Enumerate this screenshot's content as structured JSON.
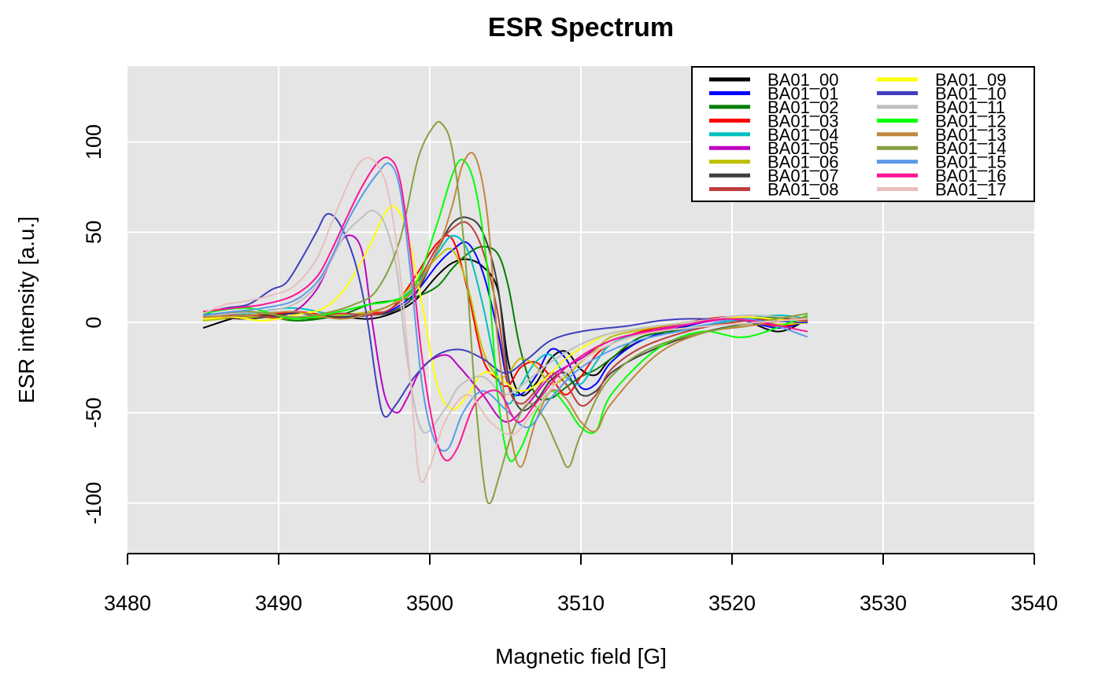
{
  "chart_data": {
    "type": "line",
    "title": "ESR Spectrum",
    "xlabel": "Magnetic field [G]",
    "ylabel": "ESR intensity [a.u.]",
    "xlim": [
      3480,
      3540
    ],
    "ylim": [
      -128,
      142
    ],
    "xticks": [
      3480,
      3490,
      3500,
      3510,
      3520,
      3530,
      3540
    ],
    "yticks": [
      -100,
      -50,
      0,
      50,
      100
    ],
    "grid": true,
    "legend_position": "top-right",
    "legend_columns": 2,
    "background_color": "#e5e5e5",
    "series": [
      {
        "name": "BA01_00",
        "color": "#000000",
        "x": [
          3485,
          3488,
          3491,
          3494,
          3496,
          3497.5,
          3499,
          3500.5,
          3501.5,
          3502.5,
          3503.5,
          3504.5,
          3505.2,
          3506,
          3507,
          3508,
          3509,
          3510,
          3511,
          3512,
          3514,
          3517,
          3520,
          3523,
          3525
        ],
        "y": [
          -3,
          4,
          2,
          3,
          2,
          5,
          12,
          26,
          33,
          35,
          31,
          18,
          -22,
          -40,
          -34,
          -20,
          -16,
          -26,
          -29,
          -20,
          -10,
          -2,
          3,
          -5,
          2
        ]
      },
      {
        "name": "BA01_01",
        "color": "#0000ff",
        "x": [
          3485,
          3488,
          3491,
          3494,
          3496,
          3497.5,
          3499,
          3500.5,
          3501.5,
          3502.5,
          3503.5,
          3504.5,
          3505.2,
          3506,
          3507,
          3508,
          3509,
          3510,
          3511,
          3512,
          3514,
          3517,
          3520,
          3523,
          3525
        ],
        "y": [
          5,
          3,
          5,
          3,
          4,
          7,
          16,
          32,
          40,
          44,
          28,
          -5,
          -35,
          -40,
          -30,
          -15,
          -20,
          -36,
          -34,
          -22,
          -10,
          -2,
          2,
          -3,
          1
        ]
      },
      {
        "name": "BA01_02",
        "color": "#007f00",
        "x": [
          3485,
          3488,
          3491,
          3494,
          3496,
          3497.5,
          3499,
          3500.5,
          3501.5,
          3502.5,
          3503.5,
          3504.5,
          3505.2,
          3506,
          3507,
          3508,
          3509,
          3510,
          3511,
          3512,
          3514,
          3517,
          3520,
          3523,
          3525
        ],
        "y": [
          2,
          6,
          1,
          4,
          10,
          12,
          14,
          20,
          30,
          38,
          42,
          38,
          20,
          -15,
          -40,
          -42,
          -36,
          -30,
          -26,
          -20,
          -8,
          -4,
          0,
          3,
          0
        ]
      },
      {
        "name": "BA01_03",
        "color": "#ff0000",
        "x": [
          3485,
          3488,
          3491,
          3494,
          3496,
          3497.5,
          3499,
          3500.5,
          3501.5,
          3502.5,
          3503.5,
          3504.5,
          3505.2,
          3506,
          3507,
          3508,
          3509,
          3510,
          3511,
          3512,
          3514,
          3517,
          3520,
          3523,
          3525
        ],
        "y": [
          4,
          2,
          6,
          3,
          5,
          8,
          25,
          44,
          46,
          18,
          -20,
          -32,
          -35,
          -25,
          -22,
          -30,
          -40,
          -30,
          -18,
          -12,
          -5,
          0,
          3,
          -2,
          1
        ]
      },
      {
        "name": "BA01_04",
        "color": "#00bfbf",
        "x": [
          3485,
          3488,
          3491,
          3494,
          3496,
          3497.5,
          3499,
          3500.5,
          3501.5,
          3502.5,
          3503.5,
          3504.5,
          3505.2,
          3506,
          3507,
          3508,
          3509,
          3510,
          3511,
          3512,
          3514,
          3517,
          3520,
          3523,
          3525
        ],
        "y": [
          3,
          5,
          8,
          4,
          6,
          10,
          20,
          38,
          48,
          40,
          10,
          -30,
          -45,
          -35,
          -22,
          -18,
          -30,
          -34,
          -22,
          -12,
          -6,
          -3,
          1,
          4,
          2
        ]
      },
      {
        "name": "BA01_05",
        "color": "#bf00bf",
        "x": [
          3485,
          3487,
          3489,
          3491,
          3492.5,
          3493.5,
          3494.5,
          3495.5,
          3496.2,
          3497,
          3497.8,
          3498.5,
          3499.5,
          3501,
          3502,
          3503.5,
          3505,
          3506.5,
          3508,
          3510,
          3512,
          3515,
          3518,
          3521,
          3525
        ],
        "y": [
          2,
          4,
          3,
          6,
          18,
          35,
          48,
          40,
          0,
          -40,
          -50,
          -42,
          -25,
          -18,
          -25,
          -40,
          -55,
          -45,
          -30,
          -20,
          -10,
          -4,
          0,
          3,
          0
        ]
      },
      {
        "name": "BA01_06",
        "color": "#bfbf00",
        "x": [
          3485,
          3488,
          3491,
          3494,
          3496,
          3497.5,
          3499,
          3500.5,
          3501.5,
          3502.5,
          3503.5,
          3504.5,
          3505.2,
          3506,
          3507,
          3508,
          3509,
          3510,
          3511,
          3512,
          3514,
          3517,
          3520,
          3523,
          3525
        ],
        "y": [
          1,
          3,
          2,
          4,
          6,
          10,
          22,
          36,
          40,
          20,
          -15,
          -30,
          -28,
          -20,
          -24,
          -34,
          -30,
          -22,
          -15,
          -8,
          -4,
          0,
          2,
          -1,
          0
        ]
      },
      {
        "name": "BA01_07",
        "color": "#3f3f3f",
        "x": [
          3485,
          3488,
          3491,
          3494,
          3496,
          3497.5,
          3499,
          3500.5,
          3501.5,
          3502.5,
          3503.5,
          3504.5,
          3505.2,
          3506,
          3507,
          3508,
          3509,
          3510,
          3511,
          3512,
          3514,
          3517,
          3520,
          3523,
          3525
        ],
        "y": [
          4,
          2,
          5,
          3,
          4,
          6,
          15,
          40,
          55,
          58,
          50,
          20,
          -30,
          -48,
          -44,
          -32,
          -28,
          -40,
          -38,
          -28,
          -18,
          -8,
          -2,
          1,
          3
        ]
      },
      {
        "name": "BA01_08",
        "color": "#bf3f3f",
        "x": [
          3485,
          3488,
          3491,
          3494,
          3496,
          3497.5,
          3499,
          3500.5,
          3501.5,
          3502.5,
          3503.5,
          3504.5,
          3505.2,
          3506,
          3507,
          3508,
          3509,
          3510,
          3511,
          3512,
          3514,
          3517,
          3520,
          3523,
          3525
        ],
        "y": [
          3,
          4,
          2,
          5,
          4,
          8,
          20,
          42,
          52,
          55,
          40,
          5,
          -35,
          -45,
          -38,
          -28,
          -34,
          -46,
          -40,
          -26,
          -14,
          -5,
          0,
          2,
          1
        ]
      },
      {
        "name": "BA01_09",
        "color": "#ffff00",
        "x": [
          3485,
          3487,
          3489,
          3491,
          3493,
          3494.5,
          3496,
          3497,
          3497.7,
          3498.5,
          3499.5,
          3500.5,
          3501.5,
          3502.5,
          3503.5,
          3504.5,
          3506,
          3507.5,
          3509,
          3510.5,
          3512,
          3515,
          3518,
          3521,
          3525
        ],
        "y": [
          2,
          3,
          1,
          4,
          8,
          20,
          42,
          60,
          64,
          50,
          10,
          -35,
          -48,
          -40,
          -28,
          -30,
          -38,
          -32,
          -20,
          -12,
          -6,
          -2,
          1,
          3,
          0
        ]
      },
      {
        "name": "BA01_10",
        "color": "#3f3fbf",
        "x": [
          3485,
          3486.5,
          3488,
          3489.5,
          3490.5,
          3491.5,
          3492.5,
          3493.2,
          3494,
          3495,
          3495.8,
          3496.5,
          3497,
          3497.8,
          3499,
          3500.5,
          3502,
          3503.5,
          3505,
          3506.5,
          3508,
          3510,
          3513,
          3517,
          3525
        ],
        "y": [
          5,
          8,
          10,
          18,
          22,
          35,
          50,
          60,
          55,
          35,
          5,
          -35,
          -52,
          -45,
          -30,
          -18,
          -15,
          -20,
          -28,
          -20,
          -10,
          -5,
          -2,
          2,
          0
        ]
      },
      {
        "name": "BA01_11",
        "color": "#bfbfbf",
        "x": [
          3485,
          3487,
          3489,
          3491,
          3492.5,
          3493.5,
          3494.5,
          3495.5,
          3496.2,
          3497,
          3497.8,
          3498.5,
          3499.5,
          3501,
          3502,
          3503.5,
          3505,
          3506.5,
          3508,
          3510,
          3512,
          3515,
          3518,
          3521,
          3525
        ],
        "y": [
          3,
          5,
          6,
          10,
          20,
          35,
          50,
          58,
          62,
          55,
          30,
          -20,
          -60,
          -48,
          -35,
          -30,
          -40,
          -32,
          -22,
          -12,
          -6,
          -2,
          1,
          4,
          2
        ]
      },
      {
        "name": "BA01_12",
        "color": "#00ff00",
        "x": [
          3485,
          3488,
          3491,
          3494,
          3496,
          3497.5,
          3499,
          3500.5,
          3501.5,
          3502.2,
          3503,
          3503.8,
          3504.5,
          3505.2,
          3506,
          3507,
          3508,
          3509,
          3510,
          3511,
          3512,
          3515,
          3518,
          3521,
          3525
        ],
        "y": [
          5,
          8,
          2,
          6,
          10,
          12,
          20,
          55,
          82,
          90,
          75,
          30,
          -40,
          -75,
          -70,
          -50,
          -38,
          -46,
          -58,
          -60,
          -40,
          -15,
          -5,
          -8,
          4
        ]
      },
      {
        "name": "BA01_13",
        "color": "#bf873f",
        "x": [
          3485,
          3488,
          3491,
          3494,
          3496,
          3497.5,
          3499,
          3500.5,
          3501.5,
          3502.2,
          3503,
          3503.8,
          3504.5,
          3505.2,
          3506,
          3507,
          3508,
          3509,
          3510,
          3511,
          3512,
          3515,
          3518,
          3521,
          3525
        ],
        "y": [
          3,
          4,
          6,
          2,
          5,
          10,
          18,
          40,
          65,
          88,
          92,
          60,
          -10,
          -55,
          -80,
          -55,
          -38,
          -42,
          -55,
          -60,
          -45,
          -18,
          -6,
          -2,
          3
        ]
      },
      {
        "name": "BA01_14",
        "color": "#879f3f",
        "x": [
          3485,
          3488,
          3491,
          3493,
          3495,
          3496.5,
          3498,
          3499.2,
          3500.2,
          3500.8,
          3501.5,
          3502.3,
          3503,
          3503.6,
          3504,
          3504.6,
          3505.5,
          3506.5,
          3507.5,
          3508.5,
          3509.2,
          3510,
          3512,
          3516,
          3525
        ],
        "y": [
          4,
          6,
          3,
          5,
          10,
          18,
          45,
          90,
          108,
          110,
          95,
          40,
          -40,
          -90,
          -100,
          -85,
          -60,
          -45,
          -52,
          -70,
          -80,
          -62,
          -30,
          -10,
          5
        ]
      },
      {
        "name": "BA01_15",
        "color": "#5b9ae8",
        "x": [
          3485,
          3487,
          3489,
          3491,
          3492.5,
          3493.5,
          3494.5,
          3495.5,
          3496.5,
          3497.3,
          3498,
          3498.7,
          3499.5,
          3500.3,
          3501.2,
          3502.2,
          3503.5,
          3505,
          3506.5,
          3508,
          3510,
          3513,
          3517,
          3521,
          3525
        ],
        "y": [
          4,
          6,
          8,
          12,
          22,
          36,
          55,
          70,
          82,
          88,
          75,
          30,
          -35,
          -65,
          -70,
          -50,
          -38,
          -48,
          -58,
          -42,
          -25,
          -12,
          -4,
          2,
          -8
        ]
      },
      {
        "name": "BA01_16",
        "color": "#ff1493",
        "x": [
          3485,
          3487,
          3489,
          3491,
          3492.5,
          3493.5,
          3494.5,
          3495.5,
          3496.5,
          3497.3,
          3498,
          3498.7,
          3499.5,
          3500.3,
          3501,
          3501.8,
          3503,
          3504.5,
          3505.8,
          3507,
          3509,
          3512,
          3516,
          3520,
          3525
        ],
        "y": [
          6,
          8,
          10,
          15,
          25,
          40,
          58,
          75,
          88,
          91,
          80,
          40,
          -20,
          -60,
          -76,
          -70,
          -45,
          -38,
          -55,
          -45,
          -25,
          -10,
          -3,
          2,
          -5
        ]
      },
      {
        "name": "BA01_17",
        "color": "#e6c0bc",
        "x": [
          3485,
          3486.5,
          3488,
          3489.5,
          3491,
          3492.5,
          3493.5,
          3494.5,
          3495.3,
          3496,
          3496.7,
          3497.3,
          3498,
          3498.7,
          3499.3,
          3500,
          3501,
          3502.5,
          3504,
          3505.5,
          3507,
          3509,
          3512,
          3516,
          3525
        ],
        "y": [
          5,
          10,
          12,
          15,
          20,
          35,
          55,
          75,
          88,
          91,
          85,
          70,
          30,
          -30,
          -85,
          -80,
          -55,
          -40,
          -55,
          -62,
          -48,
          -28,
          -12,
          -4,
          2
        ]
      }
    ]
  }
}
